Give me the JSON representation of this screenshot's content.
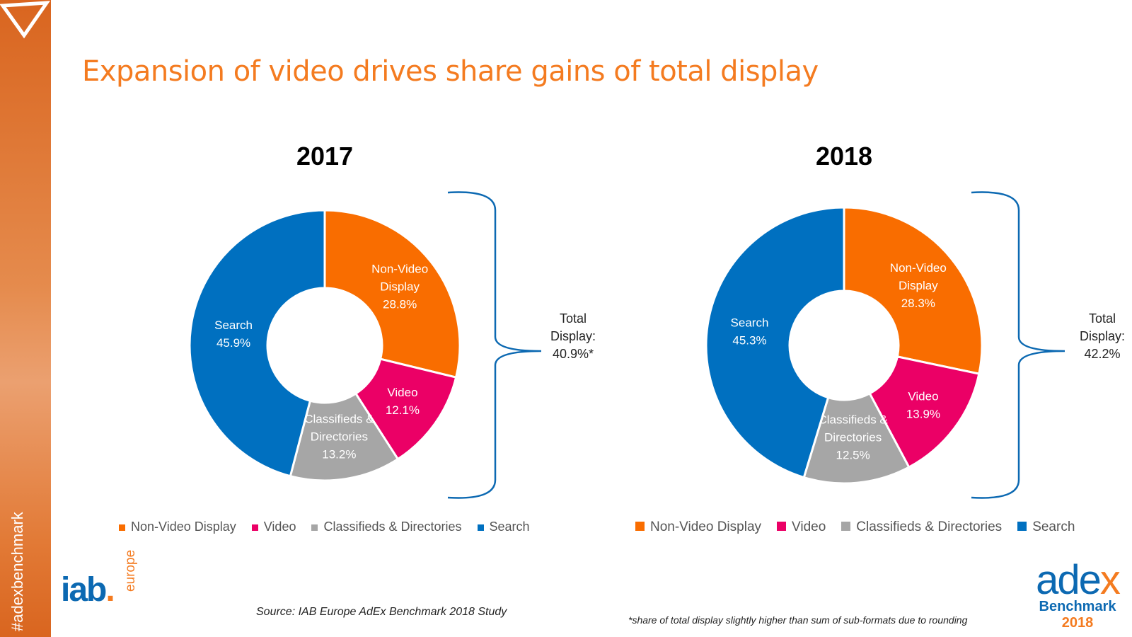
{
  "sidebar": {
    "hashtag": "#adexbenchmark"
  },
  "title": "Expansion of video drives share gains of total display",
  "colors": {
    "Non-Video Display": "#F96D00",
    "Video": "#EB0066",
    "Classifieds & Directories": "#A6A6A6",
    "Search": "#0070C0"
  },
  "chart_data": [
    {
      "type": "pie",
      "title": "2017",
      "categories": [
        "Non-Video Display",
        "Video",
        "Classifieds & Directories",
        "Search"
      ],
      "values": [
        28.8,
        12.1,
        13.2,
        45.9
      ],
      "labels": [
        [
          "Non-Video",
          "Display",
          "28.8%"
        ],
        [
          "Video",
          "12.1%"
        ],
        [
          "Classifieds &",
          "Directories",
          "13.2%"
        ],
        [
          "Search",
          "45.9%"
        ]
      ],
      "total_label": [
        "Total",
        "Display:",
        "40.9%*"
      ],
      "legend": [
        "Non-Video Display",
        "Video",
        "Classifieds & Directories",
        "Search"
      ],
      "legend_placement": "bottom"
    },
    {
      "type": "pie",
      "title": "2018",
      "categories": [
        "Non-Video Display",
        "Video",
        "Classifieds & Directories",
        "Search"
      ],
      "values": [
        28.3,
        13.9,
        12.5,
        45.3
      ],
      "labels": [
        [
          "Non-Video",
          "Display",
          "28.3%"
        ],
        [
          "Video",
          "13.9%"
        ],
        [
          "Classifieds &",
          "Directories",
          "12.5%"
        ],
        [
          "Search",
          "45.3%"
        ]
      ],
      "total_label": [
        "Total",
        "Display:",
        "42.2%"
      ],
      "legend": [
        "Non-Video Display",
        "Video",
        "Classifieds & Directories",
        "Search"
      ],
      "legend_placement": "bottom"
    }
  ],
  "footer": {
    "source": "Source: IAB Europe AdEx Benchmark 2018 Study",
    "note": "*share of total display slightly higher than sum of sub-formats due to rounding",
    "iab_logo": "iab europe",
    "adex_logo": "adex Benchmark 2018"
  }
}
